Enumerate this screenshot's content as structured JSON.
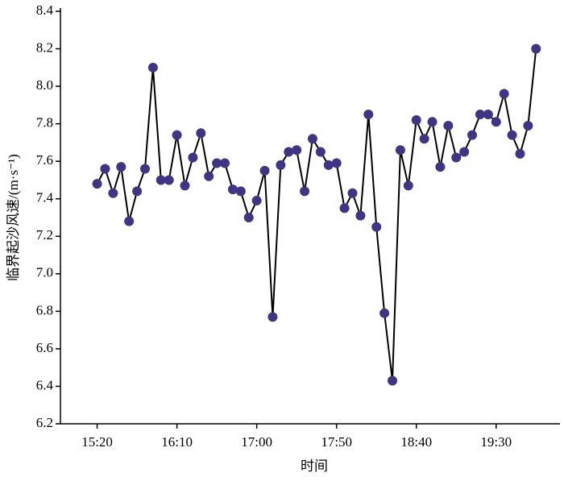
{
  "chart_data": {
    "type": "line",
    "x_label": "时间",
    "y_label": "临界起沙风速/(m·s⁻¹)",
    "x": [
      920,
      925,
      930,
      935,
      940,
      945,
      950,
      955,
      960,
      965,
      970,
      975,
      980,
      985,
      990,
      995,
      1000,
      1005,
      1010,
      1015,
      1020,
      1025,
      1030,
      1035,
      1040,
      1045,
      1050,
      1055,
      1060,
      1065,
      1070,
      1075,
      1080,
      1085,
      1090,
      1095,
      1100,
      1105,
      1110,
      1115,
      1120,
      1125,
      1130,
      1135,
      1140,
      1145,
      1150,
      1155,
      1160,
      1165,
      1170,
      1175,
      1180,
      1185,
      1190,
      1195
    ],
    "series": [
      {
        "color": "#3f3585",
        "line_color": "#000000",
        "values": [
          7.48,
          7.56,
          7.43,
          7.57,
          7.28,
          7.44,
          7.56,
          8.1,
          7.5,
          7.5,
          7.74,
          7.47,
          7.62,
          7.75,
          7.52,
          7.59,
          7.59,
          7.45,
          7.44,
          7.3,
          7.39,
          7.55,
          6.77,
          7.58,
          7.65,
          7.66,
          7.44,
          7.72,
          7.65,
          7.58,
          7.59,
          7.35,
          7.43,
          7.31,
          7.85,
          7.25,
          6.79,
          6.43,
          7.66,
          7.47,
          7.82,
          7.72,
          7.81,
          7.57,
          7.79,
          7.62,
          7.65,
          7.74,
          7.85,
          7.85,
          7.81,
          7.96,
          7.74,
          7.64,
          7.79,
          8.2
        ]
      }
    ],
    "xlim": [
      897,
      1210
    ],
    "xticks": [
      {
        "value": 920,
        "label": "15:20"
      },
      {
        "value": 970,
        "label": "16:10"
      },
      {
        "value": 1020,
        "label": "17:00"
      },
      {
        "value": 1070,
        "label": "17:50"
      },
      {
        "value": 1120,
        "label": "18:40"
      },
      {
        "value": 1170,
        "label": "19:30"
      }
    ],
    "ylim": [
      6.2,
      8.4
    ],
    "yticks": [
      6.2,
      6.4,
      6.6,
      6.8,
      {
        "value": 7,
        "label": "7.0"
      },
      7.2,
      7.4,
      7.6,
      7.8,
      {
        "value": 8,
        "label": "8.0"
      },
      8.2,
      8.4
    ]
  }
}
